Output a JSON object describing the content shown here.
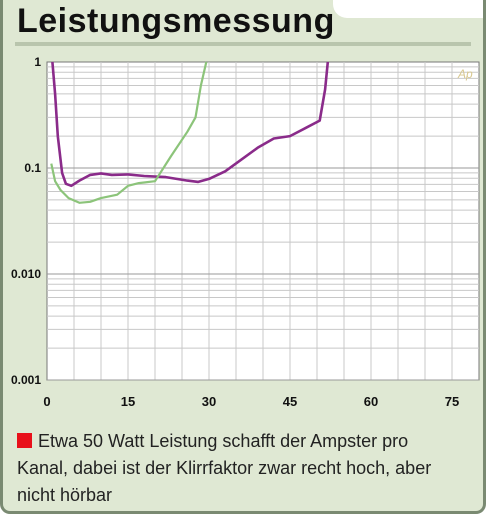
{
  "title": "Leistungsmessung",
  "caption": "Etwa 50 Watt Leistung schafft der Ampster pro Kanal, dabei ist der Klirrfaktor zwar recht hoch, aber nicht hörbar",
  "colors": {
    "panel": "#dfe8d3",
    "purple_series": "#8a2b8a",
    "green_series": "#8cc47a",
    "bullet": "#e8101a"
  },
  "chart_data": {
    "type": "line",
    "title": "",
    "xlabel": "",
    "ylabel": "",
    "xlim": [
      0,
      80
    ],
    "ylim": [
      0.001,
      1
    ],
    "yscale": "log",
    "grid": true,
    "xticks": [
      0,
      15,
      30,
      45,
      60,
      75
    ],
    "xtick_labels": [
      "0",
      "15",
      "30",
      "45",
      "60",
      "75"
    ],
    "yticks": [
      0.001,
      0.01,
      0.1,
      1
    ],
    "ytick_labels": [
      "0.001",
      "0.010",
      "0.1",
      "1"
    ],
    "logo": "Ap",
    "series": [
      {
        "color": "purple",
        "x": [
          1.0,
          1.5,
          2.0,
          2.8,
          3.5,
          4.5,
          6,
          8,
          10,
          12,
          15,
          18,
          22,
          26,
          28,
          30,
          33,
          36,
          39,
          42,
          45,
          48,
          50.5,
          51.5,
          52
        ],
        "y": [
          1.0,
          0.5,
          0.2,
          0.09,
          0.071,
          0.068,
          0.076,
          0.086,
          0.089,
          0.086,
          0.087,
          0.084,
          0.082,
          0.076,
          0.074,
          0.079,
          0.093,
          0.12,
          0.155,
          0.19,
          0.2,
          0.24,
          0.28,
          0.55,
          1.0
        ]
      },
      {
        "color": "green",
        "x": [
          0.8,
          1.5,
          2.5,
          4,
          6,
          8,
          10,
          13,
          15,
          17,
          20,
          23,
          26,
          27.5,
          28.5,
          29.5
        ],
        "y": [
          0.11,
          0.075,
          0.062,
          0.052,
          0.047,
          0.048,
          0.052,
          0.056,
          0.068,
          0.072,
          0.075,
          0.13,
          0.22,
          0.3,
          0.6,
          1.0
        ]
      }
    ]
  }
}
